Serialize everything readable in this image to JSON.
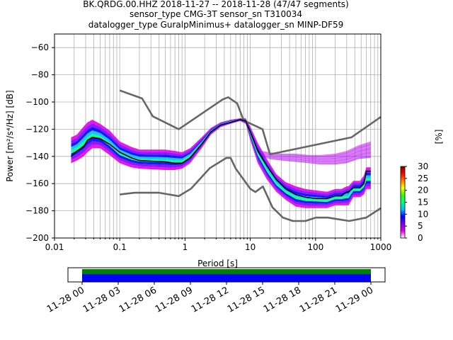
{
  "title": {
    "line1": "BK.QRDG.00.HHZ   2018-11-27 -- 2018-11-28  (47/47 segments)",
    "line2": "sensor_type CMG-3T sensor_sn T310034",
    "line3": "datalogger_type GuralpMinimus+ datalogger_sn MINP-DF59"
  },
  "chart_data": [
    {
      "type": "heatmap",
      "xlabel": "Period [s]",
      "ylabel": "Power [m²/s⁴/Hz] [dB]",
      "x_scale": "log",
      "xlim": [
        0.01,
        1000
      ],
      "ylim": [
        -200,
        -50
      ],
      "x_ticks": [
        "0.01",
        "0.1",
        "1",
        "10",
        "100",
        "1000"
      ],
      "y_ticks": [
        "−60",
        "−80",
        "−100",
        "−120",
        "−140",
        "−160",
        "−180",
        "−200"
      ],
      "grid": true,
      "colorbar": {
        "label": "[%]",
        "ticks": [
          "0",
          "5",
          "10",
          "15",
          "20",
          "25",
          "30"
        ],
        "range": [
          0,
          30
        ],
        "colors": [
          "#ffffff",
          "#e600e6",
          "#7f00ff",
          "#0000ff",
          "#00bfff",
          "#00ff80",
          "#33ff00",
          "#ffff00",
          "#ff8000",
          "#ff0000",
          "#800000"
        ]
      },
      "mean_curve": {
        "period": [
          0.018,
          0.022,
          0.028,
          0.032,
          0.038,
          0.05,
          0.07,
          0.1,
          0.15,
          0.2,
          0.3,
          0.5,
          0.7,
          0.9,
          1.2,
          1.8,
          2.5,
          3.5,
          5,
          7,
          8.5,
          10,
          13,
          18,
          25,
          35,
          50,
          70,
          100,
          150,
          200,
          250,
          300,
          320,
          380,
          480,
          550,
          600,
          700
        ],
        "power": [
          -140,
          -136,
          -133,
          -128,
          -126,
          -127,
          -131,
          -137,
          -141,
          -143,
          -143.5,
          -144,
          -145,
          -145,
          -141,
          -131,
          -122,
          -117,
          -115,
          -113,
          -114,
          -122,
          -136,
          -147,
          -157,
          -164,
          -168,
          -170,
          -171,
          -171,
          -169,
          -169,
          -166,
          -166,
          -163,
          -163,
          -160,
          -151,
          -151
        ]
      },
      "noise_models": {
        "high": {
          "period": [
            0.1,
            0.22,
            0.32,
            0.8,
            3.8,
            4.6,
            6.3,
            7.9,
            15.4,
            20,
            354.8,
            1000
          ],
          "power": [
            -91.5,
            -97.4,
            -110.5,
            -120,
            -98,
            -96.5,
            -101,
            -113.5,
            -120,
            -138.5,
            -126,
            -111
          ]
        },
        "low": {
          "period": [
            0.1,
            0.17,
            0.4,
            0.8,
            1.24,
            2.4,
            4.3,
            5,
            6,
            10,
            12,
            15.6,
            21.9,
            31.6,
            45,
            70,
            101,
            154,
            328,
            600,
            1000
          ],
          "power": [
            -168,
            -166.7,
            -166.7,
            -169.2,
            -163.7,
            -148.6,
            -141.1,
            -141.1,
            -149,
            -163.8,
            -166.2,
            -162.1,
            -177.5,
            -185,
            -187.5,
            -187.5,
            -185,
            -185,
            -187.5,
            -185,
            -178
          ]
        }
      },
      "heatmap_bands": [
        {
          "name": "main",
          "period": [
            0.018,
            0.022,
            0.028,
            0.032,
            0.038,
            0.05,
            0.07,
            0.1,
            0.15,
            0.2,
            0.3,
            0.5,
            0.7,
            0.9,
            1.2,
            1.8,
            2.5,
            3.5,
            5,
            7,
            8.5,
            10,
            13,
            18,
            25,
            35,
            50,
            70,
            100,
            150,
            200,
            250,
            300,
            320,
            380,
            480,
            550,
            600,
            700
          ],
          "lower": [
            -145,
            -143,
            -140,
            -137,
            -134,
            -134,
            -139,
            -145,
            -148,
            -149,
            -149.5,
            -150,
            -150,
            -149,
            -145,
            -134,
            -124,
            -118.5,
            -116,
            -114,
            -116,
            -128,
            -145,
            -157,
            -166,
            -172,
            -177,
            -178,
            -178,
            -178,
            -176,
            -176,
            -176,
            -176,
            -170,
            -170,
            -168,
            -164,
            -164
          ],
          "upper": [
            -126,
            -124,
            -118,
            -115,
            -113,
            -116,
            -121,
            -129,
            -133,
            -135,
            -135,
            -135,
            -136,
            -137,
            -134,
            -126,
            -119,
            -115,
            -113,
            -112,
            -112,
            -118,
            -130,
            -142,
            -153,
            -159,
            -162,
            -164,
            -165,
            -166,
            -164,
            -164,
            -162,
            -162,
            -158,
            -158,
            -154,
            -148,
            -148
          ]
        },
        {
          "name": "upper-outliers",
          "period": [
            15,
            20,
            30,
            50,
            80,
            120,
            200,
            300,
            450,
            700
          ],
          "lower": [
            -140,
            -142,
            -143,
            -144,
            -145,
            -146,
            -146,
            -145,
            -142,
            -141
          ],
          "upper": [
            -136,
            -137,
            -138,
            -138,
            -139,
            -139,
            -138,
            -136,
            -132,
            -129
          ]
        }
      ]
    },
    {
      "type": "timeline",
      "x_ticks": [
        "11-28 00",
        "11-28 03",
        "11-28 06",
        "11-28 09",
        "11-28 12",
        "11-28 15",
        "11-28 18",
        "11-28 21",
        "11-29 00"
      ],
      "start_hour": 0,
      "end_hour": 24,
      "rows": [
        {
          "color": "#008000",
          "hours": 24
        },
        {
          "color": "#0000ff",
          "hours": 24
        }
      ]
    }
  ]
}
